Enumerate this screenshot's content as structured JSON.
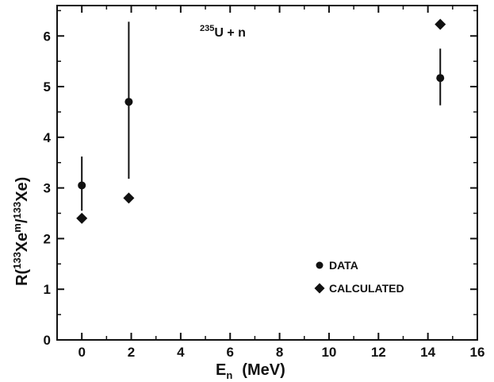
{
  "chart_data": {
    "type": "scatter",
    "xlim": [
      -1,
      16
    ],
    "ylim": [
      0,
      6.6
    ],
    "x_ticks": [
      0,
      2,
      4,
      6,
      8,
      10,
      12,
      14,
      16
    ],
    "y_ticks": [
      0,
      1,
      2,
      3,
      4,
      5,
      6
    ],
    "xlabel": {
      "main": "E",
      "sub": "n",
      "unit": "(MeV)"
    },
    "ylabel": {
      "prefix": "R(",
      "mass1": "133",
      "sym1": "Xe",
      "meta": "m",
      "slash": "/",
      "mass2": "133",
      "sym2": "Xe",
      "suffix": ")"
    },
    "annotation": {
      "mass": "235",
      "text": "U + n"
    },
    "grid": false,
    "legend_position": "lower-right",
    "series": [
      {
        "name": "DATA",
        "marker": "circle",
        "points": [
          {
            "x": 0.0,
            "y": 3.05,
            "err_low": 2.55,
            "err_high": 3.62
          },
          {
            "x": 1.9,
            "y": 4.7,
            "err_low": 3.18,
            "err_high": 6.28
          },
          {
            "x": 14.5,
            "y": 5.17,
            "err_low": 4.63,
            "err_high": 5.75
          }
        ]
      },
      {
        "name": "CALCULATED",
        "marker": "diamond",
        "points": [
          {
            "x": 0.0,
            "y": 2.4
          },
          {
            "x": 1.9,
            "y": 2.8
          },
          {
            "x": 14.5,
            "y": 6.23
          }
        ]
      }
    ]
  }
}
